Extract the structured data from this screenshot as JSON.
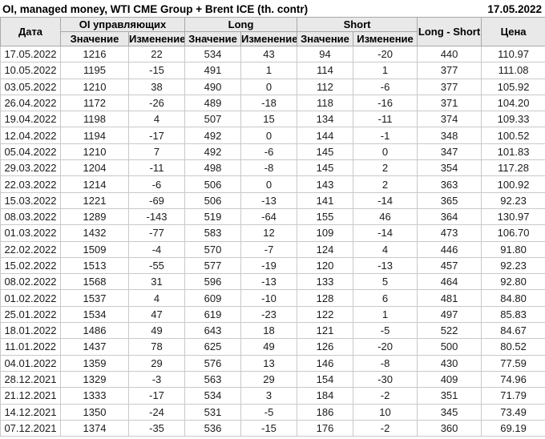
{
  "colors": {
    "positive": "#168016",
    "negative": "#cc2222",
    "header_bg": "#e9e9e9",
    "header_border": "#a9a9a9",
    "cell_border": "#c9c9c9"
  },
  "chart_data": {
    "type": "table",
    "title": "OI, managed money, WTI CME Group + Brent ICE (th. contr)",
    "report_date": "17.05.2022",
    "header": {
      "date": "Дата",
      "group_oi": "OI управляющих",
      "group_long": "Long",
      "group_short": "Short",
      "value": "Значение",
      "change": "Изменение",
      "long_short": "Long - Short",
      "price": "Цена"
    },
    "rows": [
      {
        "date": "17.05.2022",
        "oi": "1216",
        "oi_chg": "22",
        "oi_dir": "up",
        "long": "534",
        "long_chg": "43",
        "long_dir": "up",
        "short": "94",
        "short_chg": "-20",
        "short_dir": "down",
        "ls": "440",
        "price": "110.97"
      },
      {
        "date": "10.05.2022",
        "oi": "1195",
        "oi_chg": "-15",
        "oi_dir": "down",
        "long": "491",
        "long_chg": "1",
        "long_dir": "up",
        "short": "114",
        "short_chg": "1",
        "short_dir": "up",
        "ls": "377",
        "price": "111.08"
      },
      {
        "date": "03.05.2022",
        "oi": "1210",
        "oi_chg": "38",
        "oi_dir": "up",
        "long": "490",
        "long_chg": "0",
        "long_dir": "up",
        "short": "112",
        "short_chg": "-6",
        "short_dir": "down",
        "ls": "377",
        "price": "105.92"
      },
      {
        "date": "26.04.2022",
        "oi": "1172",
        "oi_chg": "-26",
        "oi_dir": "down",
        "long": "489",
        "long_chg": "-18",
        "long_dir": "down",
        "short": "118",
        "short_chg": "-16",
        "short_dir": "down",
        "ls": "371",
        "price": "104.20"
      },
      {
        "date": "19.04.2022",
        "oi": "1198",
        "oi_chg": "4",
        "oi_dir": "up",
        "long": "507",
        "long_chg": "15",
        "long_dir": "up",
        "short": "134",
        "short_chg": "-11",
        "short_dir": "down",
        "ls": "374",
        "price": "109.33"
      },
      {
        "date": "12.04.2022",
        "oi": "1194",
        "oi_chg": "-17",
        "oi_dir": "down",
        "long": "492",
        "long_chg": "0",
        "long_dir": "down",
        "short": "144",
        "short_chg": "-1",
        "short_dir": "down",
        "ls": "348",
        "price": "100.52"
      },
      {
        "date": "05.04.2022",
        "oi": "1210",
        "oi_chg": "7",
        "oi_dir": "up",
        "long": "492",
        "long_chg": "-6",
        "long_dir": "down",
        "short": "145",
        "short_chg": "0",
        "short_dir": "up",
        "ls": "347",
        "price": "101.83"
      },
      {
        "date": "29.03.2022",
        "oi": "1204",
        "oi_chg": "-11",
        "oi_dir": "down",
        "long": "498",
        "long_chg": "-8",
        "long_dir": "down",
        "short": "145",
        "short_chg": "2",
        "short_dir": "up",
        "ls": "354",
        "price": "117.28"
      },
      {
        "date": "22.03.2022",
        "oi": "1214",
        "oi_chg": "-6",
        "oi_dir": "down",
        "long": "506",
        "long_chg": "0",
        "long_dir": "up",
        "short": "143",
        "short_chg": "2",
        "short_dir": "up",
        "ls": "363",
        "price": "100.92"
      },
      {
        "date": "15.03.2022",
        "oi": "1221",
        "oi_chg": "-69",
        "oi_dir": "down",
        "long": "506",
        "long_chg": "-13",
        "long_dir": "down",
        "short": "141",
        "short_chg": "-14",
        "short_dir": "down",
        "ls": "365",
        "price": "92.23"
      },
      {
        "date": "08.03.2022",
        "oi": "1289",
        "oi_chg": "-143",
        "oi_dir": "down",
        "long": "519",
        "long_chg": "-64",
        "long_dir": "down",
        "short": "155",
        "short_chg": "46",
        "short_dir": "up",
        "ls": "364",
        "price": "130.97"
      },
      {
        "date": "01.03.2022",
        "oi": "1432",
        "oi_chg": "-77",
        "oi_dir": "down",
        "long": "583",
        "long_chg": "12",
        "long_dir": "up",
        "short": "109",
        "short_chg": "-14",
        "short_dir": "down",
        "ls": "473",
        "price": "106.70"
      },
      {
        "date": "22.02.2022",
        "oi": "1509",
        "oi_chg": "-4",
        "oi_dir": "down",
        "long": "570",
        "long_chg": "-7",
        "long_dir": "down",
        "short": "124",
        "short_chg": "4",
        "short_dir": "up",
        "ls": "446",
        "price": "91.80"
      },
      {
        "date": "15.02.2022",
        "oi": "1513",
        "oi_chg": "-55",
        "oi_dir": "down",
        "long": "577",
        "long_chg": "-19",
        "long_dir": "down",
        "short": "120",
        "short_chg": "-13",
        "short_dir": "down",
        "ls": "457",
        "price": "92.23"
      },
      {
        "date": "08.02.2022",
        "oi": "1568",
        "oi_chg": "31",
        "oi_dir": "up",
        "long": "596",
        "long_chg": "-13",
        "long_dir": "down",
        "short": "133",
        "short_chg": "5",
        "short_dir": "up",
        "ls": "464",
        "price": "92.80"
      },
      {
        "date": "01.02.2022",
        "oi": "1537",
        "oi_chg": "4",
        "oi_dir": "up",
        "long": "609",
        "long_chg": "-10",
        "long_dir": "down",
        "short": "128",
        "short_chg": "6",
        "short_dir": "up",
        "ls": "481",
        "price": "84.80"
      },
      {
        "date": "25.01.2022",
        "oi": "1534",
        "oi_chg": "47",
        "oi_dir": "up",
        "long": "619",
        "long_chg": "-23",
        "long_dir": "down",
        "short": "122",
        "short_chg": "1",
        "short_dir": "up",
        "ls": "497",
        "price": "85.83"
      },
      {
        "date": "18.01.2022",
        "oi": "1486",
        "oi_chg": "49",
        "oi_dir": "up",
        "long": "643",
        "long_chg": "18",
        "long_dir": "up",
        "short": "121",
        "short_chg": "-5",
        "short_dir": "down",
        "ls": "522",
        "price": "84.67"
      },
      {
        "date": "11.01.2022",
        "oi": "1437",
        "oi_chg": "78",
        "oi_dir": "up",
        "long": "625",
        "long_chg": "49",
        "long_dir": "up",
        "short": "126",
        "short_chg": "-20",
        "short_dir": "down",
        "ls": "500",
        "price": "80.52"
      },
      {
        "date": "04.01.2022",
        "oi": "1359",
        "oi_chg": "29",
        "oi_dir": "up",
        "long": "576",
        "long_chg": "13",
        "long_dir": "up",
        "short": "146",
        "short_chg": "-8",
        "short_dir": "down",
        "ls": "430",
        "price": "77.59"
      },
      {
        "date": "28.12.2021",
        "oi": "1329",
        "oi_chg": "-3",
        "oi_dir": "down",
        "long": "563",
        "long_chg": "29",
        "long_dir": "up",
        "short": "154",
        "short_chg": "-30",
        "short_dir": "down",
        "ls": "409",
        "price": "74.96"
      },
      {
        "date": "21.12.2021",
        "oi": "1333",
        "oi_chg": "-17",
        "oi_dir": "down",
        "long": "534",
        "long_chg": "3",
        "long_dir": "up",
        "short": "184",
        "short_chg": "-2",
        "short_dir": "down",
        "ls": "351",
        "price": "71.79"
      },
      {
        "date": "14.12.2021",
        "oi": "1350",
        "oi_chg": "-24",
        "oi_dir": "down",
        "long": "531",
        "long_chg": "-5",
        "long_dir": "down",
        "short": "186",
        "short_chg": "10",
        "short_dir": "up",
        "ls": "345",
        "price": "73.49"
      },
      {
        "date": "07.12.2021",
        "oi": "1374",
        "oi_chg": "-35",
        "oi_dir": "down",
        "long": "536",
        "long_chg": "-15",
        "long_dir": "down",
        "short": "176",
        "short_chg": "-2",
        "short_dir": "down",
        "ls": "360",
        "price": "69.19"
      }
    ]
  }
}
